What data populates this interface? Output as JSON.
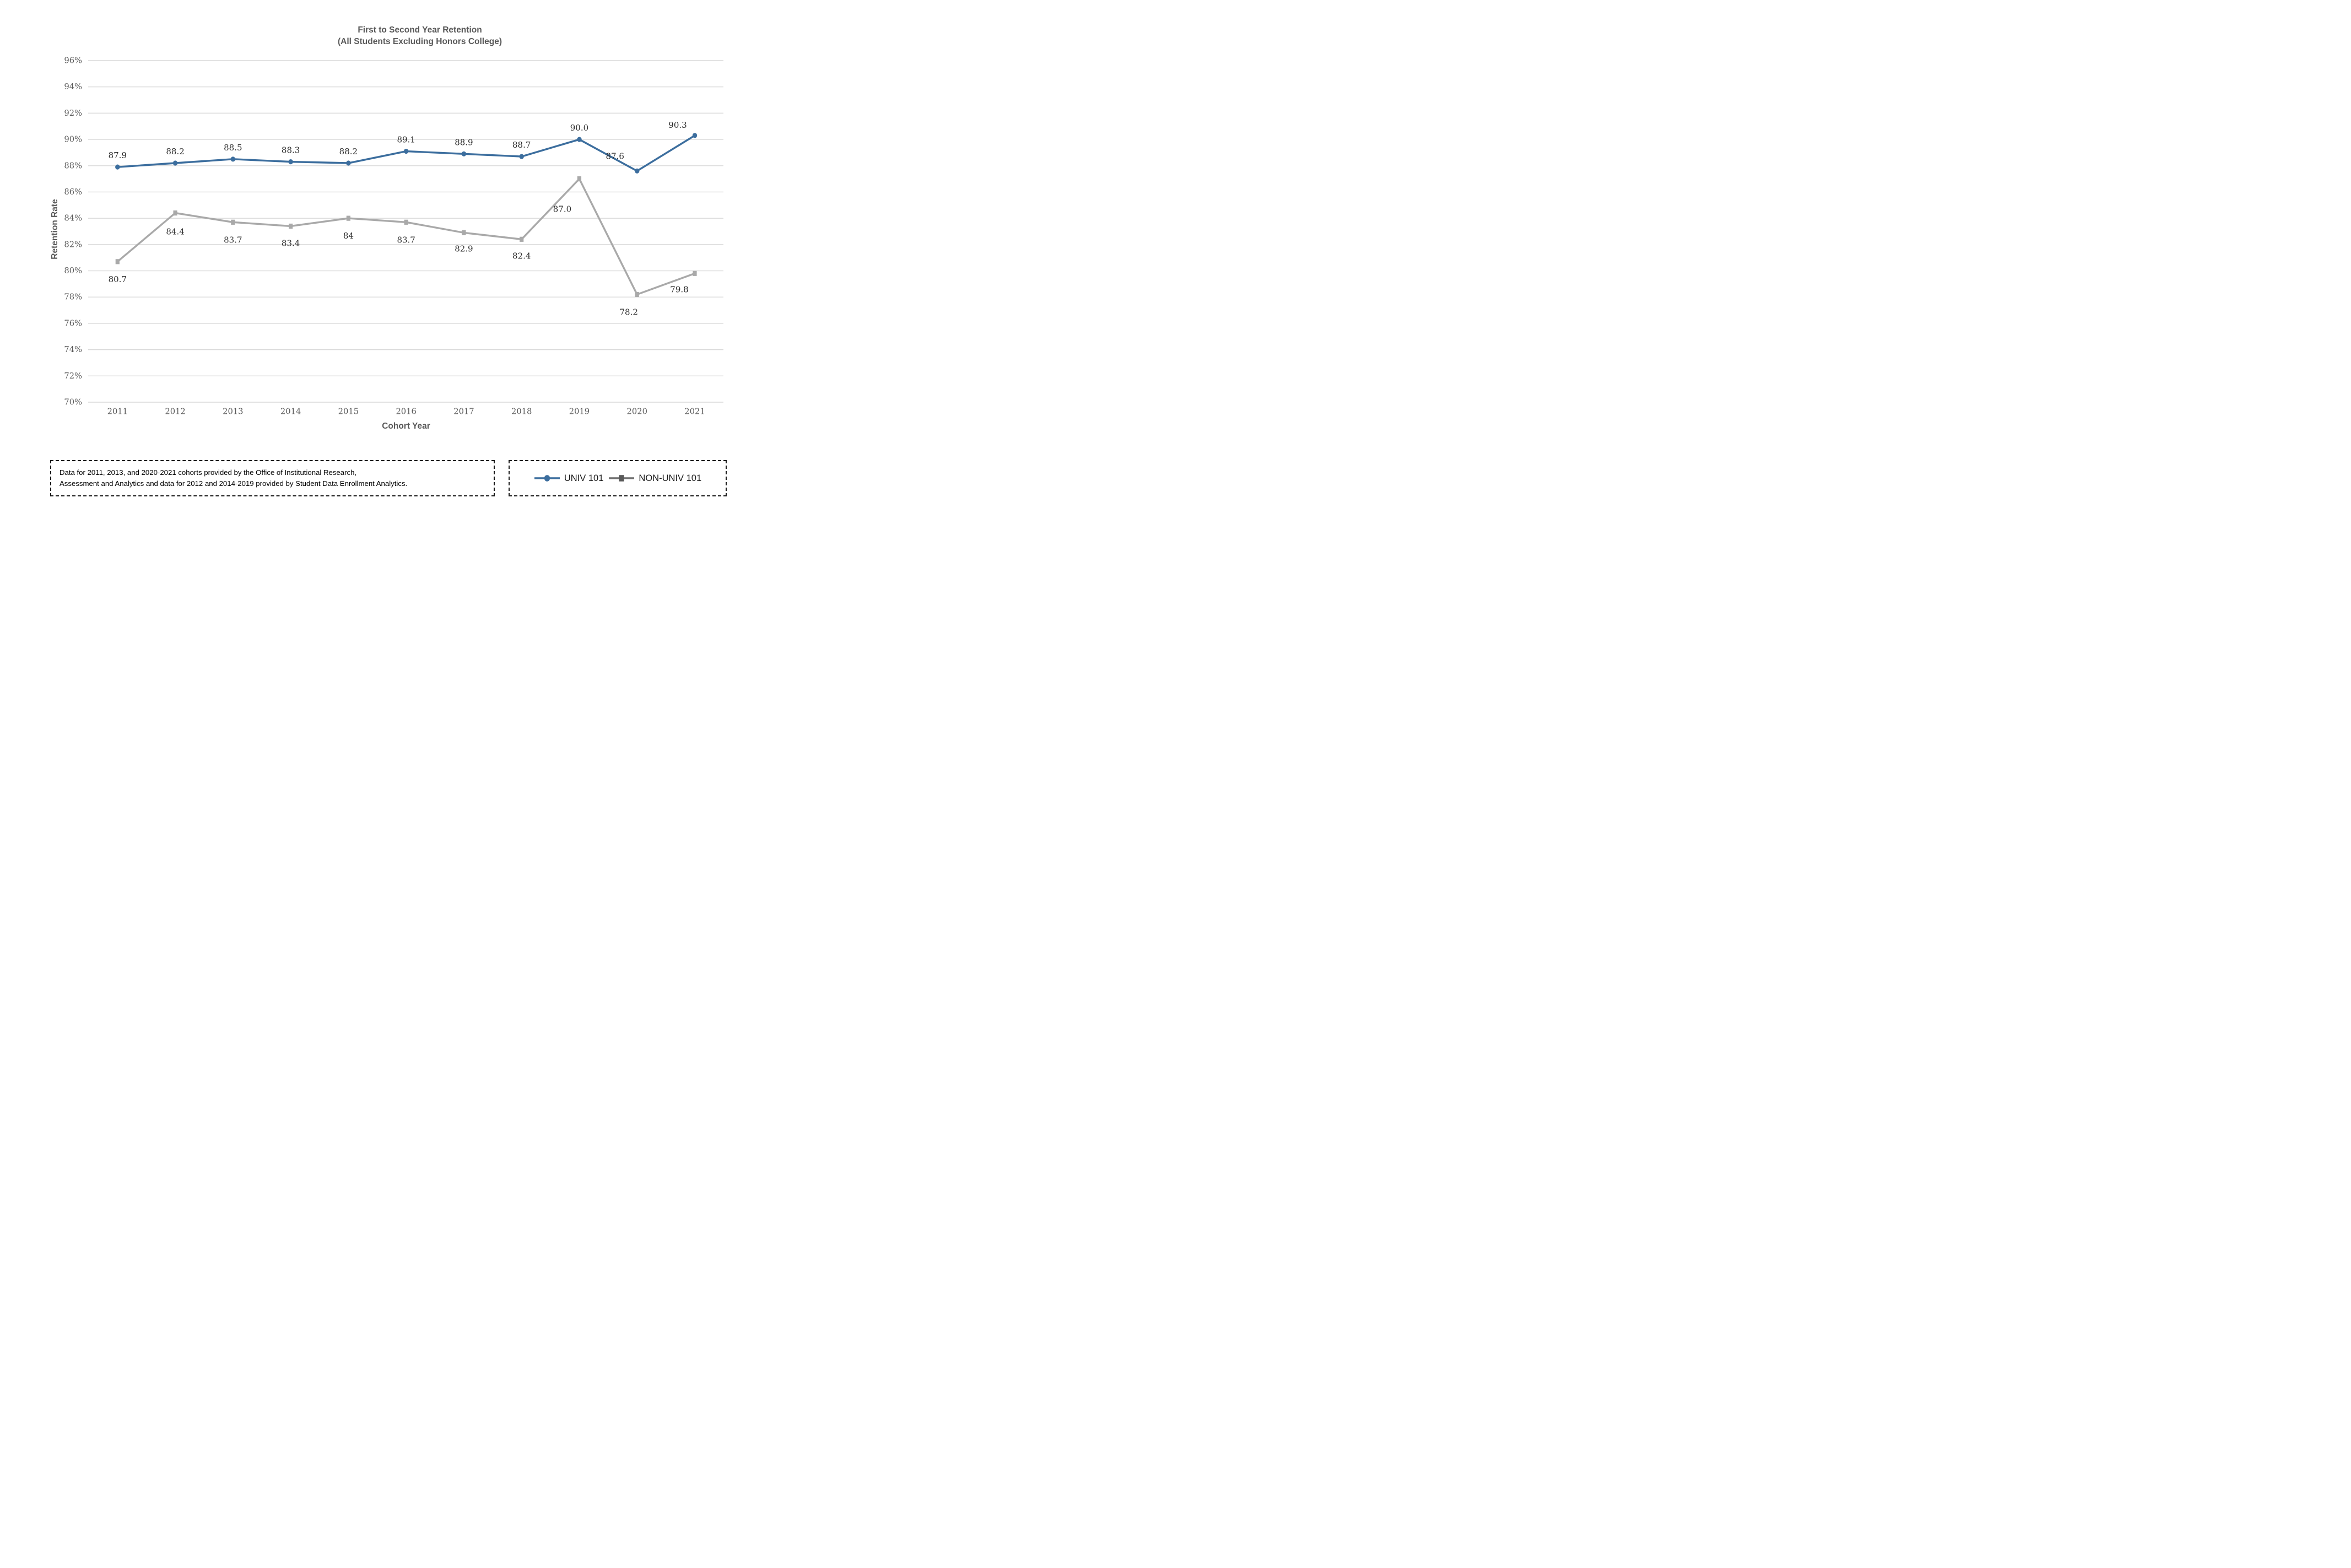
{
  "title": {
    "line1": "First to Second Year Retention",
    "line2": "(All Students Excluding Honors College)"
  },
  "axes": {
    "y_label": "Retention Rate",
    "x_label": "Cohort Year"
  },
  "footnote": {
    "line1": "Data for 2011, 2013, and 2020-2021 cohorts provided by the Office of Institutional Research,",
    "line2": "Assessment and Analytics and data for 2012 and 2014-2019 provided by Student Data Enrollment Analytics."
  },
  "legend": {
    "items": [
      {
        "label": "UNIV 101",
        "marker": "circle",
        "line_color": "#3C6E9E",
        "marker_color": "#3C6E9E"
      },
      {
        "label": "NON-UNIV 101",
        "marker": "square",
        "line_color": "#6E6E6E",
        "marker_color": "#595959"
      }
    ]
  },
  "colors": {
    "background": "#FFFFFF",
    "gridline": "#D9D9D9",
    "axis_text": "#595959",
    "data_label": "#2B2B2B",
    "title_text": "#595959",
    "footnote_text": "#000000",
    "legend_text": "#1A1A1A",
    "box_border": "#1A1A1A"
  },
  "chart_data": {
    "type": "line",
    "title": "First to Second Year Retention (All Students Excluding Honors College)",
    "xlabel": "Cohort Year",
    "ylabel": "Retention Rate",
    "categories": [
      "2011",
      "2012",
      "2013",
      "2014",
      "2015",
      "2016",
      "2017",
      "2018",
      "2019",
      "2020",
      "2021"
    ],
    "ylim": [
      70,
      96
    ],
    "ytick_step": 2,
    "ytick_suffix": "%",
    "grid": true,
    "legend_position": "bottom-right",
    "series": [
      {
        "name": "UNIV 101",
        "color": "#3C6E9E",
        "marker": "circle",
        "label_position": "above",
        "values": [
          87.9,
          88.2,
          88.5,
          88.3,
          88.2,
          89.1,
          88.9,
          88.7,
          90.0,
          87.6,
          90.3
        ],
        "labels": [
          "87.9",
          "88.2",
          "88.5",
          "88.3",
          "88.2",
          "89.1",
          "88.9",
          "88.7",
          "90.0",
          "87.6",
          "90.3"
        ],
        "label_offsets": [
          [
            0,
            -21
          ],
          [
            0,
            -21
          ],
          [
            0,
            -21
          ],
          [
            0,
            -21
          ],
          [
            0,
            -21
          ],
          [
            0,
            -21
          ],
          [
            0,
            -21
          ],
          [
            0,
            -21
          ],
          [
            0,
            -21
          ],
          [
            -40,
            -27
          ],
          [
            -31,
            -19
          ]
        ]
      },
      {
        "name": "NON-UNIV 101",
        "color": "#A9A9A9",
        "marker": "square",
        "label_position": "below",
        "values": [
          80.7,
          84.4,
          83.7,
          83.4,
          84,
          83.7,
          82.9,
          82.4,
          87.0,
          78.2,
          79.8
        ],
        "labels": [
          "80.7",
          "84.4",
          "83.7",
          "83.4",
          "84",
          "83.7",
          "82.9",
          "82.4",
          "87.0",
          "78.2",
          "79.8"
        ],
        "label_offsets": [
          [
            0,
            32
          ],
          [
            0,
            34
          ],
          [
            0,
            32
          ],
          [
            0,
            31
          ],
          [
            0,
            32
          ],
          [
            0,
            32
          ],
          [
            0,
            29
          ],
          [
            0,
            30
          ],
          [
            -31,
            55
          ],
          [
            -15,
            32
          ],
          [
            -28,
            29
          ]
        ]
      }
    ]
  }
}
